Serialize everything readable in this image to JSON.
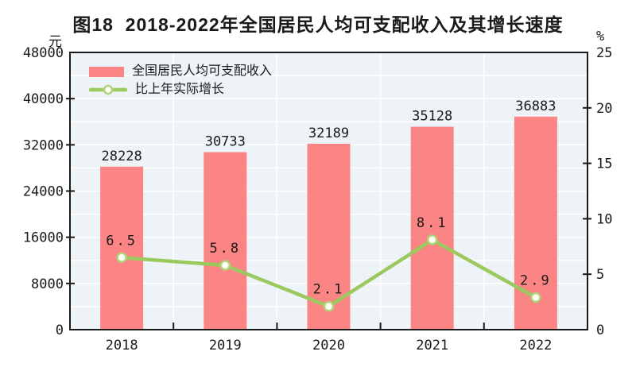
{
  "title": "图18  2018-2022年全国居民人均可支配收入及其增长速度",
  "left_axis_unit": "元",
  "right_axis_unit": "%",
  "legend": [
    {
      "label": "全国居民人均可支配收入",
      "marker": "bar-swatch"
    },
    {
      "label": "比上年实际增长",
      "marker": "line-with-circle"
    }
  ],
  "chart_data": {
    "type": "bar",
    "combo": "bar+line",
    "categories": [
      "2018",
      "2019",
      "2020",
      "2021",
      "2022"
    ],
    "series": [
      {
        "name": "全国居民人均可支配收入",
        "type": "bar",
        "axis": "left",
        "values": [
          28228,
          30733,
          32189,
          35128,
          36883
        ]
      },
      {
        "name": "比上年实际增长",
        "type": "line",
        "axis": "right",
        "marker": "open-circle",
        "values": [
          6.5,
          5.8,
          2.1,
          8.1,
          2.9
        ],
        "labels": [
          "6.5",
          "5.8",
          "2.1",
          "8.1",
          "2.9"
        ]
      }
    ],
    "left_axis": {
      "unit": "元",
      "min": 0,
      "max": 48000,
      "tick_step": 8000,
      "minor_step": 4000,
      "ticks": [
        0,
        8000,
        16000,
        24000,
        32000,
        40000,
        48000
      ]
    },
    "right_axis": {
      "unit": "%",
      "min": 0,
      "max": 25,
      "tick_step": 5,
      "ticks": [
        0,
        5,
        10,
        15,
        20,
        25
      ]
    },
    "grid": "white horizontal minor lines + vertical category boundary lines",
    "legend_position": "top-left-inside"
  },
  "colors": {
    "bar": "#fb8484",
    "line": "#9bc95f",
    "marker_fill": "#fffff2",
    "marker_stroke": "#b0d37c",
    "plot_bg": "#edf3f7",
    "grid": "#ffffff",
    "axis": "#1a1a1a",
    "text": "#1a1a1a"
  }
}
